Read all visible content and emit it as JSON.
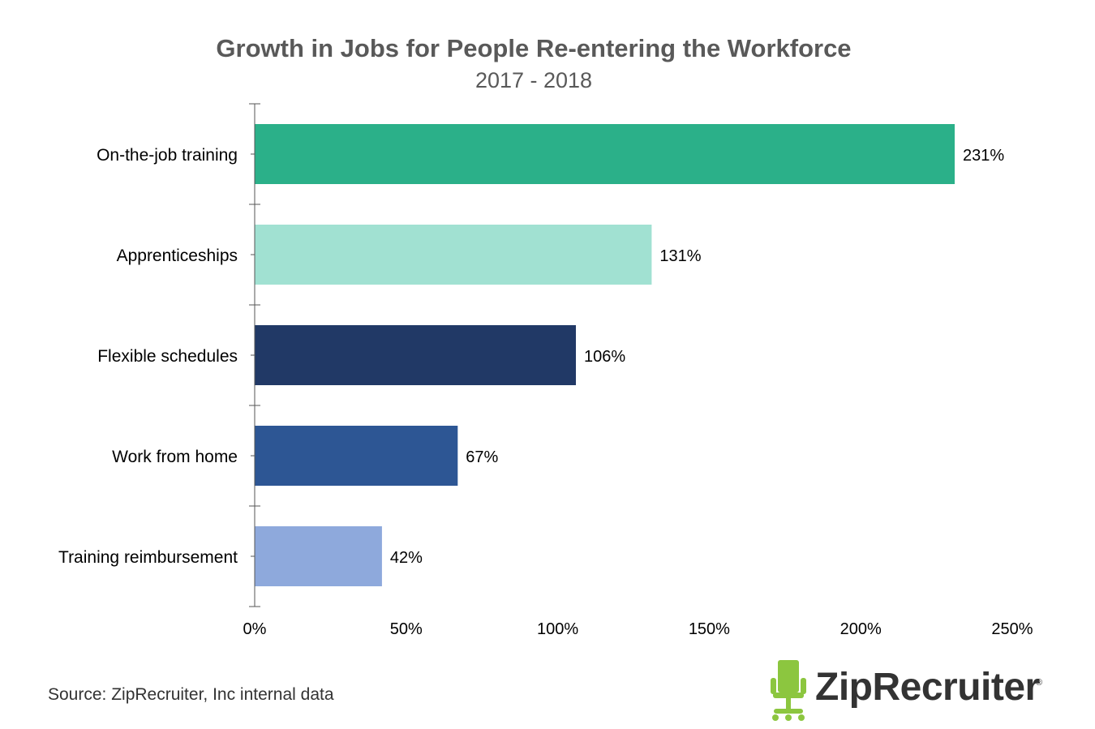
{
  "chart_data": {
    "type": "bar",
    "orientation": "horizontal",
    "title": "Growth in Jobs for People Re-entering the Workforce",
    "subtitle": "2017 - 2018",
    "categories": [
      "On-the-job training",
      "Apprenticeships",
      "Flexible schedules",
      "Work from home",
      "Training reimbursement"
    ],
    "values": [
      231,
      131,
      106,
      67,
      42
    ],
    "value_labels": [
      "231%",
      "131%",
      "106%",
      "67%",
      "42%"
    ],
    "bar_colors": [
      "#2bb089",
      "#a1e1d2",
      "#213966",
      "#2d5694",
      "#8ea9dc"
    ],
    "xlim": [
      0,
      250
    ],
    "x_ticks": [
      0,
      50,
      100,
      150,
      200,
      250
    ],
    "x_tick_labels": [
      "0%",
      "50%",
      "100%",
      "150%",
      "200%",
      "250%"
    ],
    "grid": false,
    "legend": "none"
  },
  "source": "Source: ZipRecruiter, Inc internal data",
  "logo": {
    "text": "ZipRecruiter",
    "mark": "®",
    "icon": "chair-icon",
    "icon_color": "#8cc63f"
  }
}
